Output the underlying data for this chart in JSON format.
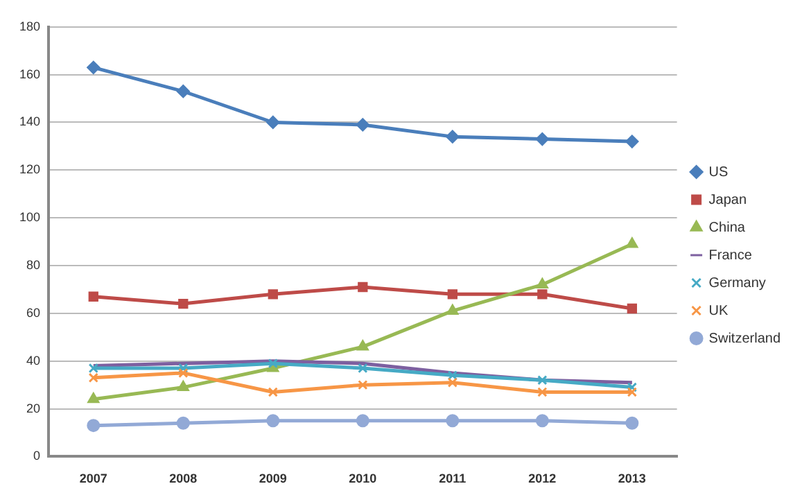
{
  "chart_data": {
    "type": "line",
    "categories": [
      "2007",
      "2008",
      "2009",
      "2010",
      "2011",
      "2012",
      "2013"
    ],
    "ylim": [
      0,
      180
    ],
    "yticks": [
      0,
      20,
      40,
      60,
      80,
      100,
      120,
      140,
      160,
      180
    ],
    "grid": "y",
    "legend": "right",
    "line_style": "solid",
    "series": [
      {
        "name": "US",
        "color": "#4a7ebb",
        "marker": "diamond",
        "values": [
          163,
          153,
          140,
          139,
          134,
          133,
          132
        ]
      },
      {
        "name": "Japan",
        "color": "#be4b48",
        "marker": "square",
        "values": [
          67,
          64,
          68,
          71,
          68,
          68,
          62
        ]
      },
      {
        "name": "China",
        "color": "#98b954",
        "marker": "triangle",
        "values": [
          24,
          29,
          37,
          46,
          61,
          72,
          89
        ]
      },
      {
        "name": "France",
        "color": "#7d60a0",
        "marker": "none",
        "values": [
          38,
          39,
          40,
          39,
          35,
          32,
          31
        ]
      },
      {
        "name": "Germany",
        "color": "#46aac5",
        "marker": "cross",
        "values": [
          37,
          37,
          39,
          37,
          34,
          32,
          29
        ]
      },
      {
        "name": "UK",
        "color": "#f79646",
        "marker": "cross",
        "values": [
          33,
          35,
          27,
          30,
          31,
          27,
          27
        ]
      },
      {
        "name": "Switzerland",
        "color": "#92a9d6",
        "marker": "circle",
        "values": [
          13,
          14,
          15,
          15,
          15,
          15,
          14
        ]
      }
    ]
  }
}
